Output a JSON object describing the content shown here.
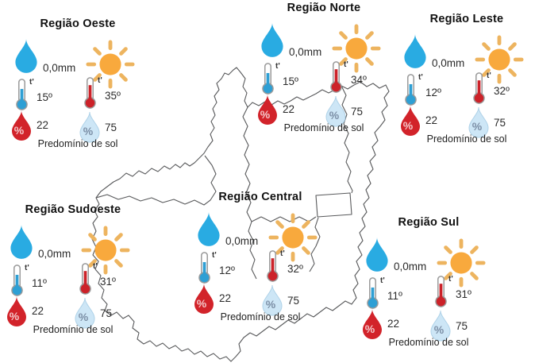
{
  "labels": {
    "percent": "%",
    "therm_mark": "t'"
  },
  "regions": [
    {
      "id": "oeste",
      "name": "Região Oeste",
      "precipitation": "0,0mm",
      "temp_min": "15º",
      "temp_max": "35º",
      "humidity_min": "22",
      "humidity_max": "75",
      "forecast": "Predomínio de sol"
    },
    {
      "id": "norte",
      "name": "Região Norte",
      "precipitation": "0,0mm",
      "temp_min": "15º",
      "temp_max": "34º",
      "humidity_min": "22",
      "humidity_max": "75",
      "forecast": "Predomínio de sol"
    },
    {
      "id": "leste",
      "name": "Região Leste",
      "precipitation": "0,0mm",
      "temp_min": "12º",
      "temp_max": "32º",
      "humidity_min": "22",
      "humidity_max": "75",
      "forecast": "Predomínio de sol"
    },
    {
      "id": "sudoeste",
      "name": "Região Sudoeste",
      "precipitation": "0,0mm",
      "temp_min": "11º",
      "temp_max": "31º",
      "humidity_min": "22",
      "humidity_max": "75",
      "forecast": "Predomínio de sol"
    },
    {
      "id": "central",
      "name": "Região Central",
      "precipitation": "0,0mm",
      "temp_min": "12º",
      "temp_max": "32º",
      "humidity_min": "22",
      "humidity_max": "75",
      "forecast": "Predomínio de sol"
    },
    {
      "id": "sul",
      "name": "Região Sul",
      "precipitation": "0,0mm",
      "temp_min": "11º",
      "temp_max": "31º",
      "humidity_min": "22",
      "humidity_max": "75",
      "forecast": "Predomínio de sol"
    }
  ],
  "colors": {
    "rain_drop": "#29ABE2",
    "humidity_min_drop": "#D2232A",
    "humidity_max_drop": "#CDE6F6",
    "therm_min": "#2E9FD4",
    "therm_max": "#CC2229",
    "sun_core": "#F8A93D",
    "sun_rays": "#EDB45F",
    "map_stroke": "#58595B"
  }
}
